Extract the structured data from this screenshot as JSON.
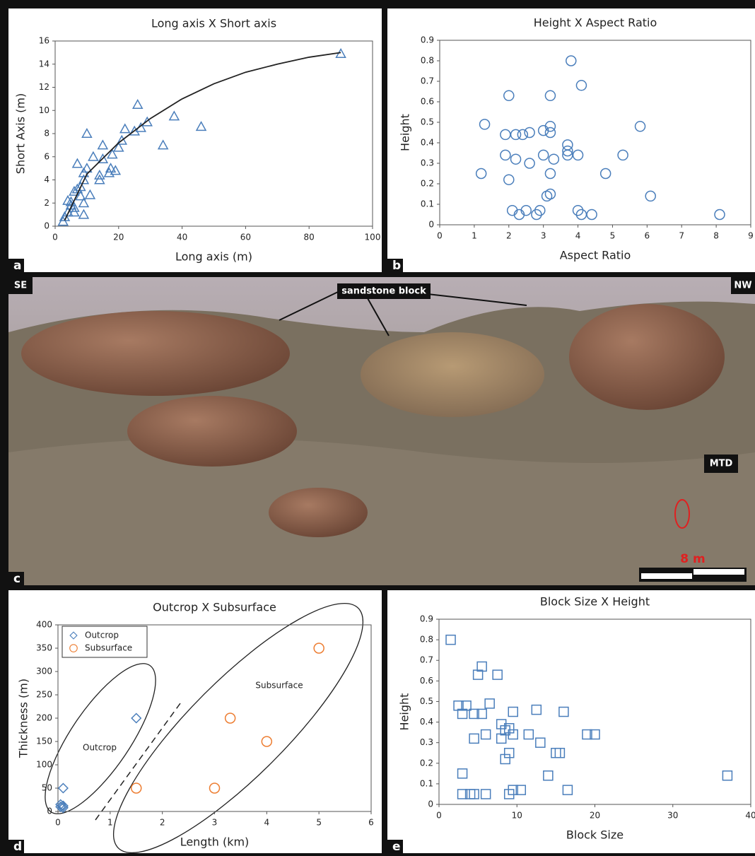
{
  "chart_data": [
    {
      "type": "scatter",
      "title": "Long axis X Short axis",
      "x_label": "Long axis (m)",
      "y_label": "Short Axis (m)",
      "xlim": [
        0,
        100
      ],
      "xticks": [
        0,
        20,
        40,
        60,
        80,
        100
      ],
      "ylim": [
        0,
        16
      ],
      "yticks": [
        0,
        2,
        4,
        6,
        8,
        10,
        12,
        14,
        16
      ],
      "series": [
        {
          "color": "#4a7ebb",
          "marker": "triangle",
          "x": [
            90,
            46,
            37.5,
            34,
            26,
            29,
            27,
            25,
            22,
            21,
            20,
            18,
            19,
            17.5,
            17,
            15,
            15,
            14,
            14,
            12,
            11,
            10,
            10,
            9,
            9,
            8,
            7,
            8,
            9,
            9,
            7,
            6,
            6,
            6,
            5,
            5,
            4,
            3,
            2.5,
            4
          ],
          "values": [
            14.9,
            8.6,
            9.5,
            7,
            10.5,
            9,
            8.5,
            8.2,
            8.4,
            7.4,
            6.8,
            6.2,
            4.8,
            5,
            4.6,
            7,
            5.8,
            4.4,
            4,
            6,
            2.7,
            8,
            5,
            4.6,
            4,
            3.4,
            5.4,
            2.6,
            2,
            1,
            3.2,
            3,
            1.6,
            1.2,
            2.1,
            1.8,
            2.2,
            0.8,
            0.4,
            1.2
          ]
        }
      ],
      "trendline": {
        "color": "#222222",
        "x": [
          3,
          10,
          20,
          30,
          40,
          50,
          60,
          70,
          80,
          90
        ],
        "values": [
          0.5,
          4.5,
          7.2,
          9.3,
          11,
          12.3,
          13.3,
          14,
          14.6,
          15
        ]
      }
    },
    {
      "type": "scatter",
      "title": "Height X Aspect Ratio",
      "x_label": "Aspect Ratio",
      "y_label": "Height",
      "xlim": [
        0,
        9
      ],
      "xticks": [
        0,
        1,
        2,
        3,
        4,
        5,
        6,
        7,
        8,
        9
      ],
      "ylim": [
        0,
        0.9
      ],
      "yticks": [
        0,
        0.1,
        0.2,
        0.3,
        0.4,
        0.5,
        0.6,
        0.7,
        0.8,
        0.9
      ],
      "series": [
        {
          "color": "#4a7ebb",
          "marker": "circle",
          "x": [
            3.8,
            2,
            3.2,
            4.1,
            1.3,
            1.9,
            2.2,
            2.4,
            2.6,
            3,
            3.2,
            3.2,
            5.8,
            1.9,
            2.2,
            2.6,
            3,
            3.3,
            3.7,
            3.7,
            3.7,
            4,
            5.3,
            1.2,
            2,
            3.2,
            4.8,
            3.1,
            3.2,
            6.1,
            2.1,
            2.3,
            2.5,
            2.8,
            2.9,
            4,
            4.1,
            4.4,
            8.1
          ],
          "values": [
            0.8,
            0.63,
            0.63,
            0.68,
            0.49,
            0.44,
            0.44,
            0.44,
            0.45,
            0.46,
            0.48,
            0.45,
            0.48,
            0.34,
            0.32,
            0.3,
            0.34,
            0.32,
            0.39,
            0.36,
            0.34,
            0.34,
            0.34,
            0.25,
            0.22,
            0.25,
            0.25,
            0.14,
            0.15,
            0.14,
            0.07,
            0.05,
            0.07,
            0.05,
            0.07,
            0.07,
            0.05,
            0.05,
            0.05
          ]
        }
      ]
    },
    {
      "type": "scatter",
      "title": "Outcrop X Subsurface",
      "x_label": "Length (km)",
      "y_label": "Thickness (m)",
      "xlim": [
        0,
        6
      ],
      "xticks": [
        0,
        1,
        2,
        3,
        4,
        5,
        6
      ],
      "ylim": [
        0,
        400
      ],
      "yticks": [
        0,
        50,
        100,
        150,
        200,
        250,
        300,
        350,
        400
      ],
      "legend": "upper left",
      "annotations": [
        "Outcrop",
        "Subsurface"
      ],
      "series": [
        {
          "name": "Outcrop",
          "color": "#4a7ebb",
          "marker": "diamond",
          "x": [
            0.1,
            1.5,
            0.05,
            0.1,
            0.05,
            0.1
          ],
          "values": [
            50,
            200,
            15,
            12,
            10,
            8
          ]
        },
        {
          "name": "Subsurface",
          "color": "#ed7d31",
          "marker": "circle",
          "x": [
            5,
            3.3,
            4,
            1.5,
            3
          ],
          "values": [
            350,
            200,
            150,
            50,
            50
          ]
        }
      ]
    },
    {
      "type": "scatter",
      "title": "Block Size X Height",
      "x_label": "Block Size",
      "y_label": "Height",
      "xlim": [
        0,
        40
      ],
      "xticks": [
        0,
        10,
        20,
        30,
        40
      ],
      "ylim": [
        0,
        0.9
      ],
      "yticks": [
        0,
        0.1,
        0.2,
        0.3,
        0.4,
        0.5,
        0.6,
        0.7,
        0.8,
        0.9
      ],
      "series": [
        {
          "color": "#4a7ebb",
          "marker": "square",
          "x": [
            1.5,
            5.5,
            5,
            7.5,
            2.5,
            3.5,
            6.5,
            3,
            4.5,
            5.5,
            9.5,
            12.5,
            16,
            8,
            8.5,
            9,
            6,
            8,
            9.5,
            11.5,
            19,
            20,
            4.5,
            13,
            15,
            15.5,
            9,
            8.5,
            3,
            14,
            37,
            9.5,
            10.5,
            16.5,
            3,
            4,
            4.5,
            6,
            9
          ],
          "values": [
            0.8,
            0.67,
            0.63,
            0.63,
            0.48,
            0.48,
            0.49,
            0.44,
            0.44,
            0.44,
            0.45,
            0.46,
            0.45,
            0.39,
            0.36,
            0.37,
            0.34,
            0.32,
            0.34,
            0.34,
            0.34,
            0.34,
            0.32,
            0.3,
            0.25,
            0.25,
            0.25,
            0.22,
            0.15,
            0.14,
            0.14,
            0.07,
            0.07,
            0.07,
            0.05,
            0.05,
            0.05,
            0.05,
            0.05
          ]
        }
      ]
    }
  ],
  "photo": {
    "left": "SE",
    "right": "NW",
    "label": "sandstone block",
    "mtd": "MTD",
    "scale": "8 m"
  },
  "panel_labels": [
    "a",
    "b",
    "c",
    "d",
    "e"
  ]
}
